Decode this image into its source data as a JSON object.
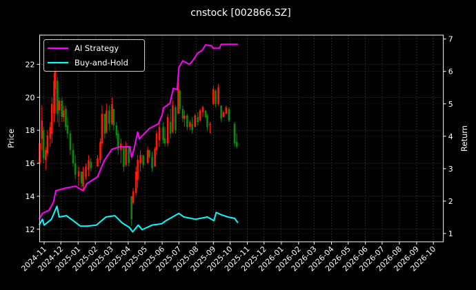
{
  "chart_data": {
    "type": "candlestick+line",
    "title": "cnstock [002866.SZ]",
    "ylabel_left": "Price",
    "ylabel_right": "Return",
    "xlim": [
      "2024-10-24",
      "2026-10-19"
    ],
    "ylim_left": [
      11.24,
      23.77
    ],
    "ylim_right": [
      0.745,
      7.12
    ],
    "grid": true,
    "legend_placement": "top-left",
    "colors": {
      "background": "#000000",
      "up": "#ff1a00",
      "down": "#0a8a0a",
      "ai_strategy": "#ff00ff",
      "buy_and_hold": "#00ffff",
      "grid": "#555555",
      "axes": "#ffffff"
    },
    "x_ticks": [
      "2024-11",
      "2024-12",
      "2025-01",
      "2025-02",
      "2025-03",
      "2025-04",
      "2025-05",
      "2025-06",
      "2025-07",
      "2025-08",
      "2025-09",
      "2025-10",
      "2025-11",
      "2025-12",
      "2026-01",
      "2026-02",
      "2026-03",
      "2026-04",
      "2026-05",
      "2026-06",
      "2026-07",
      "2026-08",
      "2026-09",
      "2026-10"
    ],
    "y_ticks_left": [
      "12",
      "14",
      "16",
      "18",
      "20",
      "22"
    ],
    "y_ticks_right": [
      "1",
      "2",
      "3",
      "4",
      "5",
      "6",
      "7"
    ],
    "candles_columns": [
      "date",
      "open",
      "high",
      "low",
      "close"
    ],
    "candles": [
      [
        "2024-10-24",
        16.0,
        17.8,
        15.3,
        17.2
      ],
      [
        "2024-10-28",
        17.5,
        19.5,
        16.8,
        18.6
      ],
      [
        "2024-10-31",
        18.0,
        18.2,
        16.0,
        16.3
      ],
      [
        "2024-11-04",
        16.2,
        17.0,
        15.6,
        16.8
      ],
      [
        "2024-11-07",
        16.6,
        18.0,
        16.4,
        17.7
      ],
      [
        "2024-11-12",
        17.5,
        18.5,
        17.0,
        18.2
      ],
      [
        "2024-11-15",
        17.8,
        20.0,
        17.2,
        19.6
      ],
      [
        "2024-11-19",
        19.0,
        21.5,
        18.5,
        21.0
      ],
      [
        "2024-11-21",
        20.5,
        22.8,
        19.0,
        21.8
      ],
      [
        "2024-11-25",
        21.0,
        21.2,
        18.5,
        19.0
      ],
      [
        "2024-11-28",
        19.2,
        20.0,
        18.2,
        19.8
      ],
      [
        "2024-12-03",
        19.8,
        20.0,
        18.5,
        18.8
      ],
      [
        "2024-12-06",
        18.8,
        19.5,
        18.5,
        19.2
      ],
      [
        "2024-12-10",
        19.3,
        19.5,
        18.0,
        18.2
      ],
      [
        "2024-12-13",
        18.3,
        18.8,
        17.5,
        17.8
      ],
      [
        "2024-12-18",
        17.8,
        18.0,
        16.5,
        16.8
      ],
      [
        "2024-12-23",
        16.8,
        17.2,
        15.8,
        16.0
      ],
      [
        "2024-12-27",
        16.0,
        16.5,
        15.0,
        15.3
      ],
      [
        "2025-01-02",
        15.2,
        15.8,
        14.6,
        15.5
      ],
      [
        "2025-01-07",
        15.5,
        15.5,
        14.5,
        14.8
      ],
      [
        "2025-01-10",
        14.6,
        15.8,
        14.4,
        15.5
      ],
      [
        "2025-01-15",
        15.2,
        16.0,
        15.0,
        15.8
      ],
      [
        "2025-01-20",
        15.6,
        16.5,
        15.2,
        16.2
      ],
      [
        "2025-01-24",
        16.1,
        16.3,
        15.5,
        15.7
      ],
      [
        "2025-02-05",
        15.8,
        16.5,
        15.8,
        16.3
      ],
      [
        "2025-02-10",
        16.2,
        17.5,
        16.0,
        17.3
      ],
      [
        "2025-02-13",
        17.2,
        19.5,
        17.0,
        19.0
      ],
      [
        "2025-02-18",
        19.0,
        19.0,
        17.5,
        17.8
      ],
      [
        "2025-02-21",
        17.9,
        19.6,
        17.8,
        19.2
      ],
      [
        "2025-02-26",
        19.2,
        19.5,
        18.0,
        18.4
      ],
      [
        "2025-03-03",
        18.4,
        20.0,
        18.3,
        19.6
      ],
      [
        "2025-03-06",
        19.3,
        19.3,
        18.0,
        18.3
      ],
      [
        "2025-03-11",
        18.3,
        18.5,
        17.5,
        17.7
      ],
      [
        "2025-03-14",
        17.8,
        18.0,
        16.5,
        16.8
      ],
      [
        "2025-03-19",
        16.8,
        17.5,
        16.0,
        17.2
      ],
      [
        "2025-03-24",
        17.0,
        17.0,
        15.5,
        15.8
      ],
      [
        "2025-03-28",
        15.9,
        17.3,
        15.8,
        17.0
      ],
      [
        "2025-04-02",
        17.0,
        17.0,
        15.8,
        16.0
      ],
      [
        "2025-04-07",
        14.0,
        14.0,
        12.2,
        12.6
      ],
      [
        "2025-04-10",
        13.6,
        14.5,
        13.5,
        14.3
      ],
      [
        "2025-04-15",
        14.2,
        15.8,
        14.0,
        15.5
      ],
      [
        "2025-04-18",
        15.0,
        16.5,
        14.5,
        16.2
      ],
      [
        "2025-04-23",
        16.0,
        16.8,
        15.5,
        16.5
      ],
      [
        "2025-04-28",
        16.5,
        16.5,
        15.7,
        15.9
      ],
      [
        "2025-05-06",
        16.0,
        17.0,
        16.0,
        16.8
      ],
      [
        "2025-05-09",
        16.8,
        16.8,
        16.3,
        16.4
      ],
      [
        "2025-05-14",
        16.4,
        16.7,
        15.5,
        15.7
      ],
      [
        "2025-05-19",
        15.8,
        17.0,
        15.8,
        16.9
      ],
      [
        "2025-05-22",
        16.8,
        18.0,
        16.5,
        17.8
      ],
      [
        "2025-05-27",
        17.4,
        18.5,
        17.0,
        18.2
      ],
      [
        "2025-06-03",
        18.2,
        18.5,
        17.2,
        17.4
      ],
      [
        "2025-06-06",
        17.5,
        18.2,
        17.0,
        17.2
      ],
      [
        "2025-06-11",
        17.2,
        19.0,
        17.0,
        18.8
      ],
      [
        "2025-06-16",
        18.5,
        19.3,
        17.5,
        17.8
      ],
      [
        "2025-06-20",
        17.9,
        19.8,
        17.8,
        19.5
      ],
      [
        "2025-06-25",
        19.4,
        19.5,
        17.8,
        18.0
      ],
      [
        "2025-06-30",
        19.0,
        20.9,
        19.0,
        20.5
      ],
      [
        "2025-07-03",
        20.4,
        20.5,
        19.0,
        19.3
      ],
      [
        "2025-07-08",
        19.3,
        19.5,
        18.5,
        18.7
      ],
      [
        "2025-07-11",
        18.7,
        19.2,
        18.2,
        18.9
      ],
      [
        "2025-07-16",
        18.9,
        19.0,
        18.0,
        18.2
      ],
      [
        "2025-07-21",
        18.2,
        18.6,
        18.0,
        18.5
      ],
      [
        "2025-07-25",
        18.4,
        18.8,
        17.8,
        18.0
      ],
      [
        "2025-07-30",
        18.2,
        19.0,
        18.2,
        18.9
      ],
      [
        "2025-08-04",
        18.8,
        19.1,
        18.3,
        18.5
      ],
      [
        "2025-08-08",
        18.6,
        19.3,
        18.5,
        19.2
      ],
      [
        "2025-08-13",
        19.1,
        19.5,
        18.8,
        19.4
      ],
      [
        "2025-08-18",
        19.2,
        19.2,
        18.7,
        18.8
      ],
      [
        "2025-08-21",
        18.9,
        19.0,
        18.0,
        18.2
      ],
      [
        "2025-08-26",
        18.3,
        18.5,
        17.8,
        18.4
      ],
      [
        "2025-09-01",
        19.6,
        20.7,
        19.5,
        20.5
      ],
      [
        "2025-09-05",
        20.4,
        20.5,
        19.4,
        19.6
      ],
      [
        "2025-09-10",
        19.6,
        20.8,
        19.5,
        20.6
      ],
      [
        "2025-09-15",
        19.5,
        19.5,
        18.5,
        18.7
      ],
      [
        "2025-09-19",
        18.8,
        19.2,
        18.8,
        19.1
      ],
      [
        "2025-09-24",
        19.0,
        19.5,
        19.0,
        19.4
      ],
      [
        "2025-09-29",
        19.3,
        19.4,
        18.5,
        18.6
      ],
      [
        "2025-10-09",
        18.4,
        18.5,
        17.0,
        17.2
      ],
      [
        "2025-10-13",
        17.3,
        17.8,
        16.9,
        17.0
      ]
    ],
    "series": [
      {
        "name": "AI Strategy",
        "axis": "right",
        "points": [
          [
            "2024-10-23",
            1.44
          ],
          [
            "2024-10-29",
            1.62
          ],
          [
            "2024-11-10",
            1.72
          ],
          [
            "2024-11-18",
            1.98
          ],
          [
            "2024-11-22",
            2.32
          ],
          [
            "2024-12-09",
            2.4
          ],
          [
            "2024-12-27",
            2.46
          ],
          [
            "2025-01-10",
            2.32
          ],
          [
            "2025-01-17",
            2.54
          ],
          [
            "2025-02-05",
            2.75
          ],
          [
            "2025-02-17",
            3.25
          ],
          [
            "2025-03-03",
            3.6
          ],
          [
            "2025-03-15",
            3.67
          ],
          [
            "2025-04-04",
            3.68
          ],
          [
            "2025-04-07",
            3.35
          ],
          [
            "2025-04-11",
            3.57
          ],
          [
            "2025-04-18",
            4.13
          ],
          [
            "2025-04-21",
            3.92
          ],
          [
            "2025-05-09",
            4.24
          ],
          [
            "2025-05-25",
            4.38
          ],
          [
            "2025-06-01",
            4.66
          ],
          [
            "2025-06-03",
            4.87
          ],
          [
            "2025-06-15",
            5.02
          ],
          [
            "2025-06-21",
            5.48
          ],
          [
            "2025-06-28",
            5.44
          ],
          [
            "2025-07-01",
            6.12
          ],
          [
            "2025-07-08",
            6.33
          ],
          [
            "2025-07-20",
            6.22
          ],
          [
            "2025-07-27",
            6.36
          ],
          [
            "2025-08-04",
            6.57
          ],
          [
            "2025-08-12",
            6.65
          ],
          [
            "2025-08-18",
            6.82
          ],
          [
            "2025-08-29",
            6.79
          ],
          [
            "2025-08-31",
            6.72
          ],
          [
            "2025-09-12",
            6.72
          ],
          [
            "2025-09-15",
            6.84
          ],
          [
            "2025-10-15",
            6.84
          ]
        ]
      },
      {
        "name": "Buy-and-Hold",
        "axis": "right",
        "points": [
          [
            "2024-10-23",
            1.26
          ],
          [
            "2024-10-29",
            1.44
          ],
          [
            "2024-11-01",
            1.26
          ],
          [
            "2024-11-14",
            1.44
          ],
          [
            "2024-11-24",
            1.84
          ],
          [
            "2024-11-28",
            1.51
          ],
          [
            "2024-12-11",
            1.55
          ],
          [
            "2024-12-23",
            1.4
          ],
          [
            "2025-01-05",
            1.23
          ],
          [
            "2025-01-17",
            1.23
          ],
          [
            "2025-02-03",
            1.26
          ],
          [
            "2025-02-20",
            1.51
          ],
          [
            "2025-03-08",
            1.55
          ],
          [
            "2025-03-21",
            1.33
          ],
          [
            "2025-04-03",
            1.19
          ],
          [
            "2025-04-09",
            1.05
          ],
          [
            "2025-04-19",
            1.26
          ],
          [
            "2025-04-26",
            1.12
          ],
          [
            "2025-05-14",
            1.26
          ],
          [
            "2025-05-31",
            1.3
          ],
          [
            "2025-06-08",
            1.4
          ],
          [
            "2025-07-01",
            1.62
          ],
          [
            "2025-07-10",
            1.51
          ],
          [
            "2025-07-31",
            1.44
          ],
          [
            "2025-08-21",
            1.51
          ],
          [
            "2025-09-02",
            1.4
          ],
          [
            "2025-09-06",
            1.65
          ],
          [
            "2025-09-15",
            1.58
          ],
          [
            "2025-09-27",
            1.51
          ],
          [
            "2025-10-09",
            1.47
          ],
          [
            "2025-10-15",
            1.33
          ]
        ]
      }
    ]
  }
}
